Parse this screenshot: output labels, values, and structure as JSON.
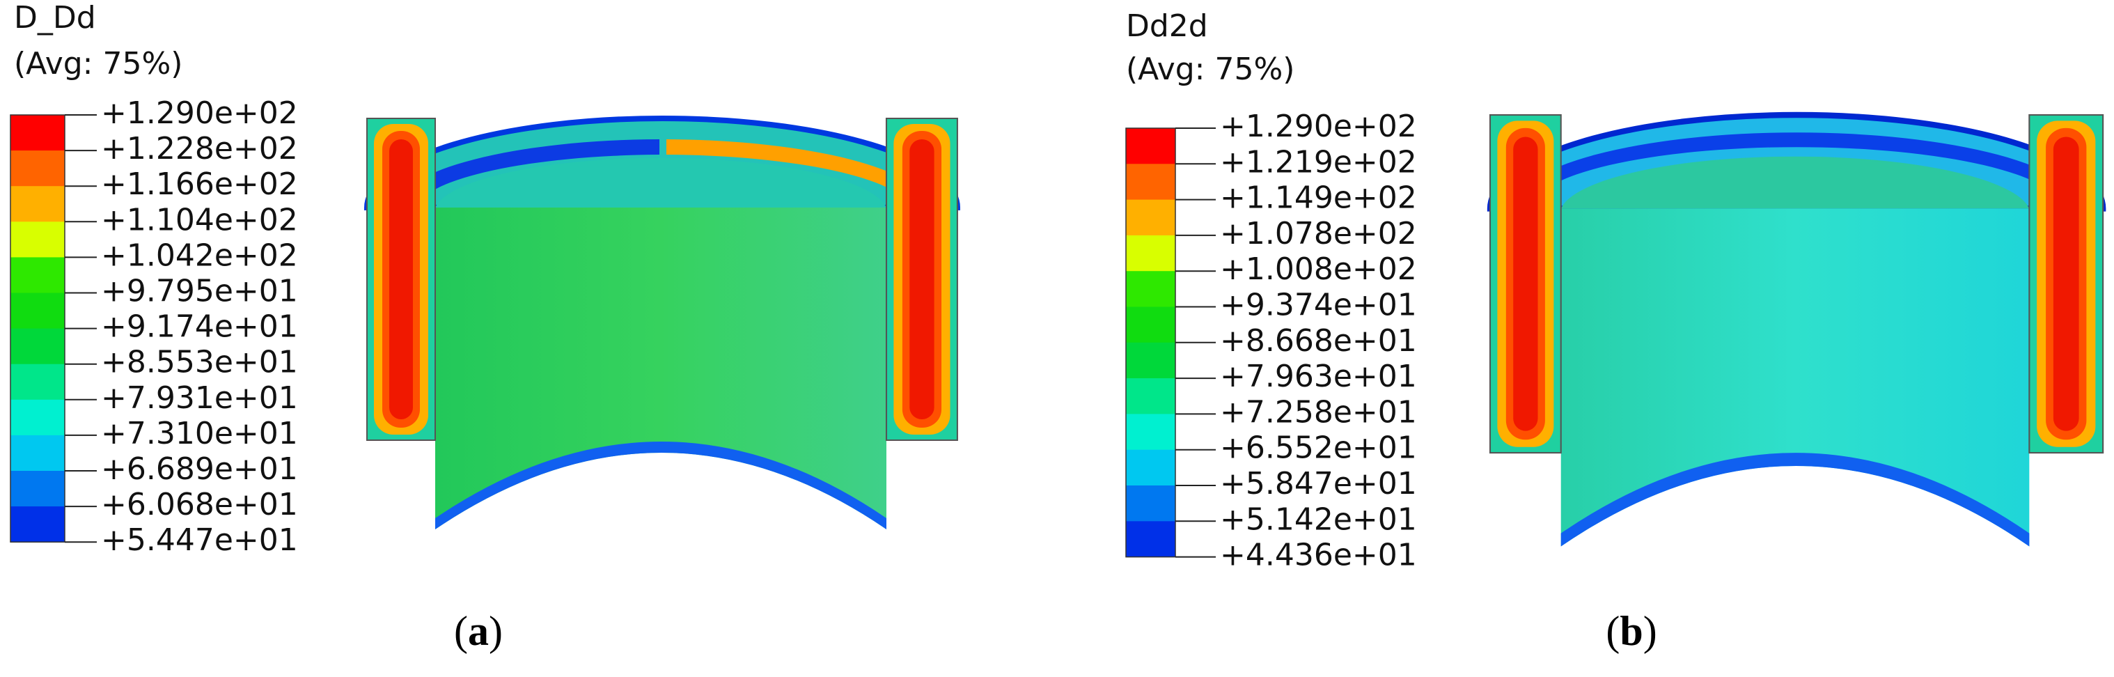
{
  "panels": [
    {
      "variable": "D_Dd",
      "averaging": "(Avg: 75%)",
      "legend": {
        "labels": [
          "+1.290e+02",
          "+1.228e+02",
          "+1.166e+02",
          "+1.104e+02",
          "+1.042e+02",
          "+9.795e+01",
          "+9.174e+01",
          "+8.553e+01",
          "+7.931e+01",
          "+7.310e+01",
          "+6.689e+01",
          "+6.068e+01",
          "+5.447e+01"
        ],
        "colors": [
          "#ff0000",
          "#ff6400",
          "#ffb000",
          "#d8ff00",
          "#2ee800",
          "#10dc10",
          "#00d83a",
          "#00e68a",
          "#00f0d0",
          "#00c8f0",
          "#0078f0",
          "#0030e8"
        ]
      },
      "caption": [
        "(",
        "a",
        ")"
      ]
    },
    {
      "variable": "Dd2d",
      "averaging": "(Avg: 75%)",
      "legend": {
        "labels": [
          "+1.290e+02",
          "+1.219e+02",
          "+1.149e+02",
          "+1.078e+02",
          "+1.008e+02",
          "+9.374e+01",
          "+8.668e+01",
          "+7.963e+01",
          "+7.258e+01",
          "+6.552e+01",
          "+5.847e+01",
          "+5.142e+01",
          "+4.436e+01"
        ],
        "colors": [
          "#ff0000",
          "#ff6400",
          "#ffb000",
          "#d8ff00",
          "#2ee800",
          "#10dc10",
          "#00d83a",
          "#00e68a",
          "#00f0d0",
          "#00c8f0",
          "#0078f0",
          "#0030e8"
        ]
      },
      "caption": [
        "(",
        "b",
        ")"
      ]
    }
  ]
}
